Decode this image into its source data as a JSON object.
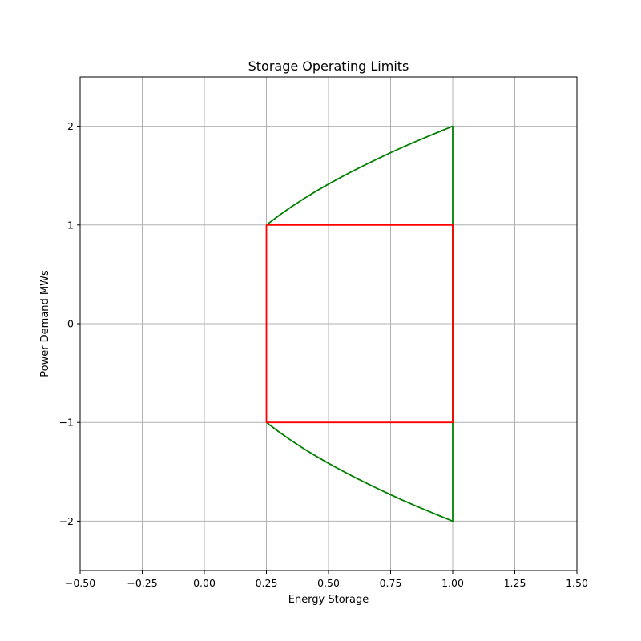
{
  "chart_data": {
    "type": "line",
    "title": "Storage Operating Limits",
    "xlabel": "Energy Storage",
    "ylabel": "Power Demand MWs",
    "xlim": [
      -0.5,
      1.5
    ],
    "ylim": [
      -2.5,
      2.5
    ],
    "x_ticks": [
      -0.5,
      -0.25,
      0.0,
      0.25,
      0.5,
      0.75,
      1.0,
      1.25,
      1.5
    ],
    "x_tick_labels": [
      "−0.50",
      "−0.25",
      "0.00",
      "0.25",
      "0.50",
      "0.75",
      "1.00",
      "1.25",
      "1.50"
    ],
    "y_ticks": [
      -2,
      -1,
      0,
      1,
      2
    ],
    "y_tick_labels": [
      "−2",
      "−1",
      "0",
      "1",
      "2"
    ],
    "grid": true,
    "series": [
      {
        "color": "#008000",
        "x": [
          0.25,
          0.3,
          0.35,
          0.4,
          0.45,
          0.5,
          0.55,
          0.6,
          0.65,
          0.7,
          0.75,
          0.8,
          0.85,
          0.9,
          0.95,
          1.0,
          1.0,
          1.0,
          0.95,
          0.9,
          0.85,
          0.8,
          0.75,
          0.7,
          0.65,
          0.6,
          0.55,
          0.5,
          0.45,
          0.4,
          0.35,
          0.3,
          0.25
        ],
        "y": [
          1.0,
          1.095,
          1.183,
          1.265,
          1.342,
          1.414,
          1.483,
          1.549,
          1.612,
          1.673,
          1.732,
          1.789,
          1.844,
          1.897,
          1.949,
          2.0,
          0.0,
          -2.0,
          -1.949,
          -1.897,
          -1.844,
          -1.789,
          -1.732,
          -1.673,
          -1.612,
          -1.549,
          -1.483,
          -1.414,
          -1.342,
          -1.265,
          -1.183,
          -1.095,
          -1.0
        ]
      },
      {
        "color": "#ff0000",
        "x": [
          0.25,
          1.0,
          1.0,
          0.25,
          0.25
        ],
        "y": [
          1.0,
          1.0,
          -1.0,
          -1.0,
          1.0
        ]
      }
    ]
  }
}
